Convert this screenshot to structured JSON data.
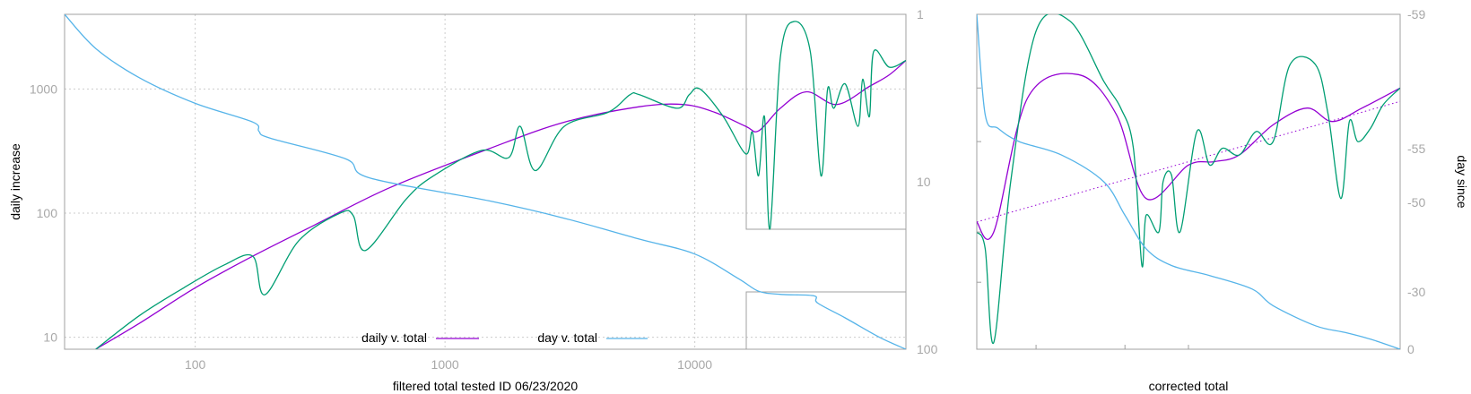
{
  "colors": {
    "green": "#009e73",
    "purple": "#9400d3",
    "blue": "#56b4e9",
    "grid": "#cccccc",
    "frame": "#a0a0a0",
    "tick_text": "#a8a8a8"
  },
  "chart_data": [
    {
      "type": "line",
      "xlabel": "filtered total tested ID 06/23/2020",
      "ylabel": "daily increase",
      "x_scale": "log",
      "y_scale": "log",
      "y2_scale": "log",
      "y2_reversed": true,
      "xlim": [
        30,
        70000
      ],
      "ylim": [
        8,
        4000
      ],
      "y2lim": [
        1,
        100
      ],
      "x_ticks": [
        "100",
        "1000",
        "10000"
      ],
      "y_ticks": [
        "10",
        "100",
        "1000"
      ],
      "y2_ticks": [
        "1",
        "10",
        "100"
      ],
      "grid": true,
      "legend_position": "bottom-center",
      "series": [
        {
          "name": "daily v. total",
          "color": "#9400d3",
          "x": [
            40,
            60,
            100,
            170,
            300,
            600,
            1500,
            3000,
            6000,
            9000,
            12000,
            16000,
            18000,
            22000,
            28000,
            37000,
            50000,
            60000,
            70000
          ],
          "y": [
            8,
            13,
            25,
            45,
            80,
            160,
            330,
            540,
            720,
            750,
            650,
            500,
            460,
            700,
            950,
            750,
            1050,
            1300,
            1700
          ]
        },
        {
          "color": "#009e73",
          "x": [
            40,
            60,
            90,
            130,
            170,
            190,
            260,
            380,
            430,
            480,
            700,
            900,
            1400,
            1800,
            2000,
            2300,
            3000,
            4500,
            5500,
            6000,
            8500,
            9500,
            10500,
            13000,
            16000,
            17000,
            18000,
            19000,
            20000,
            22000,
            25000,
            29000,
            32000,
            34000,
            36000,
            40000,
            45000,
            47000,
            50000,
            52000,
            60000,
            70000
          ],
          "y": [
            8,
            15,
            25,
            38,
            45,
            22,
            60,
            100,
            95,
            50,
            130,
            200,
            320,
            280,
            500,
            220,
            500,
            650,
            900,
            900,
            700,
            900,
            1000,
            600,
            300,
            450,
            200,
            600,
            75,
            1800,
            3500,
            2000,
            200,
            1000,
            700,
            1100,
            500,
            1200,
            600,
            2000,
            1500,
            1700
          ]
        },
        {
          "name": "day v. total",
          "color": "#56b4e9",
          "axis": "y2",
          "x": [
            30,
            40,
            60,
            100,
            170,
            180,
            200,
            400,
            500,
            1500,
            3000,
            6000,
            10000,
            15000,
            18000,
            22000,
            30000,
            31000,
            40000,
            55000,
            70000
          ],
          "y2": [
            1,
            1.6,
            2.4,
            3.4,
            4.4,
            5,
            5.5,
            7.3,
            9.5,
            13,
            16.5,
            22,
            27,
            38,
            45,
            47,
            48,
            53,
            65,
            85,
            100
          ]
        }
      ]
    },
    {
      "type": "line",
      "xlabel": "corrected total",
      "ylabel": "day since",
      "y2_ticks": [
        "-59",
        "-55",
        "-50",
        "-30",
        "0"
      ],
      "grid": false,
      "series": [
        {
          "color": "#9400d3",
          "x": [
            0,
            0.04,
            0.12,
            0.24,
            0.33,
            0.4,
            0.5,
            0.56,
            0.62,
            0.7,
            0.78,
            0.84,
            0.91,
            1
          ],
          "y": [
            0.38,
            0.35,
            0.75,
            0.82,
            0.7,
            0.45,
            0.55,
            0.56,
            0.58,
            0.67,
            0.72,
            0.68,
            0.72,
            0.78
          ]
        },
        {
          "color": "#9400d3",
          "style": "dotted",
          "x": [
            0,
            1
          ],
          "y": [
            0.38,
            0.74
          ]
        },
        {
          "color": "#009e73",
          "x": [
            0,
            0.02,
            0.04,
            0.08,
            0.14,
            0.22,
            0.3,
            0.34,
            0.37,
            0.39,
            0.4,
            0.43,
            0.44,
            0.46,
            0.48,
            0.52,
            0.55,
            0.58,
            0.62,
            0.66,
            0.7,
            0.74,
            0.8,
            0.83,
            0.86,
            0.88,
            0.9,
            0.93,
            0.96,
            1
          ],
          "y": [
            0.35,
            0.3,
            0.02,
            0.5,
            0.95,
            0.98,
            0.8,
            0.72,
            0.6,
            0.25,
            0.4,
            0.35,
            0.5,
            0.52,
            0.35,
            0.65,
            0.55,
            0.6,
            0.58,
            0.65,
            0.62,
            0.85,
            0.85,
            0.7,
            0.45,
            0.68,
            0.62,
            0.66,
            0.73,
            0.78
          ]
        },
        {
          "color": "#56b4e9",
          "axis": "y2",
          "x": [
            0,
            0.02,
            0.05,
            0.1,
            0.2,
            0.3,
            0.35,
            0.4,
            0.46,
            0.55,
            0.65,
            0.7,
            0.8,
            0.87,
            0.93,
            1
          ],
          "y": [
            1.0,
            0.7,
            0.66,
            0.62,
            0.58,
            0.5,
            0.4,
            0.3,
            0.25,
            0.22,
            0.18,
            0.13,
            0.07,
            0.05,
            0.03,
            0.0
          ]
        }
      ]
    }
  ]
}
